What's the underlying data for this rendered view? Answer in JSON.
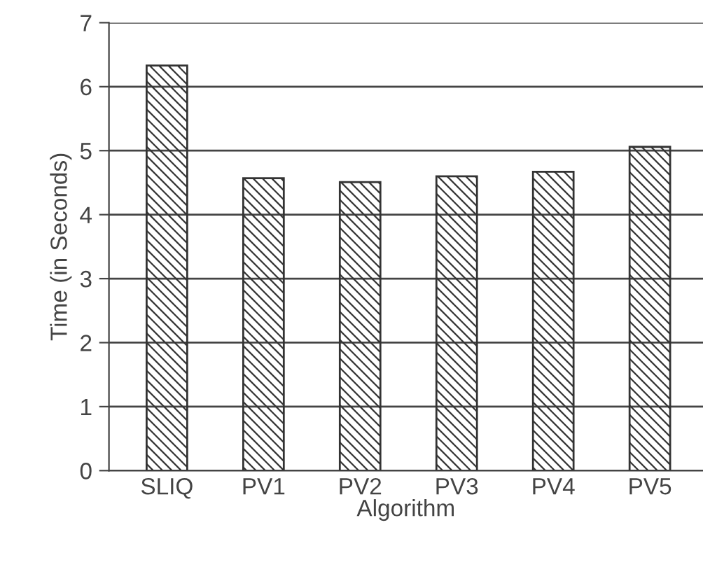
{
  "chart_data": {
    "type": "bar",
    "xlabel": "Algorithm",
    "ylabel": "Time (in Seconds)",
    "categories": [
      "SLIQ",
      "PV1",
      "PV2",
      "PV3",
      "PV4",
      "PV5"
    ],
    "values": [
      6.33,
      4.57,
      4.51,
      4.6,
      4.67,
      5.06
    ],
    "color": "#333333",
    "ylim": [
      0,
      7
    ],
    "yticks": [
      0,
      1,
      2,
      3,
      4,
      5,
      6,
      7
    ],
    "grid": "y"
  }
}
